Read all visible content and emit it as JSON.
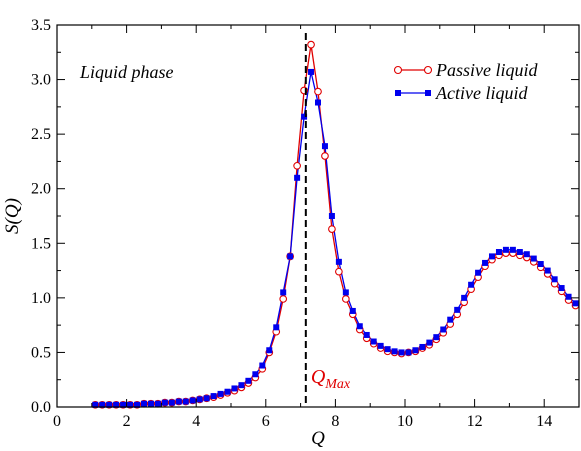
{
  "chart_data": {
    "type": "line",
    "xlabel": "Q",
    "ylabel": "S(Q)",
    "xlim": [
      0,
      15
    ],
    "ylim": [
      0,
      3.5
    ],
    "xticks": [
      "0",
      "2",
      "4",
      "6",
      "8",
      "10",
      "12",
      "14"
    ],
    "yticks": [
      "0.0",
      "0.5",
      "1.0",
      "1.5",
      "2.0",
      "2.5",
      "3.0",
      "3.5"
    ],
    "grid": false,
    "legend_position": "top-right",
    "annotation": "Liquid phase",
    "qmax_label": {
      "main": "Q",
      "sub": "Max"
    },
    "qmax_x": 7.15,
    "series": [
      {
        "name": "Passive liquid",
        "color": "#e00000",
        "marker": "open-circle",
        "x": [
          1.1,
          1.3,
          1.5,
          1.7,
          1.9,
          2.1,
          2.3,
          2.5,
          2.7,
          2.9,
          3.1,
          3.3,
          3.5,
          3.7,
          3.9,
          4.1,
          4.3,
          4.5,
          4.7,
          4.9,
          5.1,
          5.3,
          5.5,
          5.7,
          5.9,
          6.1,
          6.3,
          6.5,
          6.7,
          6.9,
          7.1,
          7.3,
          7.5,
          7.7,
          7.9,
          8.1,
          8.3,
          8.5,
          8.7,
          8.9,
          9.1,
          9.3,
          9.5,
          9.7,
          9.9,
          10.1,
          10.3,
          10.5,
          10.7,
          10.9,
          11.1,
          11.3,
          11.5,
          11.7,
          11.9,
          12.1,
          12.3,
          12.5,
          12.7,
          12.9,
          13.1,
          13.3,
          13.5,
          13.7,
          13.9,
          14.1,
          14.3,
          14.5,
          14.7,
          14.9
        ],
        "y": [
          0.02,
          0.02,
          0.02,
          0.02,
          0.02,
          0.02,
          0.02,
          0.03,
          0.03,
          0.03,
          0.04,
          0.04,
          0.05,
          0.05,
          0.06,
          0.07,
          0.08,
          0.09,
          0.11,
          0.13,
          0.15,
          0.18,
          0.22,
          0.27,
          0.35,
          0.5,
          0.69,
          0.99,
          1.38,
          2.21,
          2.9,
          3.32,
          2.89,
          2.3,
          1.63,
          1.24,
          0.99,
          0.85,
          0.71,
          0.63,
          0.58,
          0.54,
          0.51,
          0.5,
          0.49,
          0.5,
          0.51,
          0.54,
          0.57,
          0.62,
          0.68,
          0.76,
          0.85,
          0.96,
          1.08,
          1.19,
          1.29,
          1.35,
          1.39,
          1.41,
          1.41,
          1.39,
          1.37,
          1.33,
          1.28,
          1.22,
          1.13,
          1.06,
          0.98,
          0.93
        ]
      },
      {
        "name": "Active liquid",
        "color": "#0000ee",
        "marker": "filled-square",
        "x": [
          1.1,
          1.3,
          1.5,
          1.7,
          1.9,
          2.1,
          2.3,
          2.5,
          2.7,
          2.9,
          3.1,
          3.3,
          3.5,
          3.7,
          3.9,
          4.1,
          4.3,
          4.5,
          4.7,
          4.9,
          5.1,
          5.3,
          5.5,
          5.7,
          5.9,
          6.1,
          6.3,
          6.5,
          6.7,
          6.9,
          7.1,
          7.3,
          7.5,
          7.7,
          7.9,
          8.1,
          8.3,
          8.5,
          8.7,
          8.9,
          9.1,
          9.3,
          9.5,
          9.7,
          9.9,
          10.1,
          10.3,
          10.5,
          10.7,
          10.9,
          11.1,
          11.3,
          11.5,
          11.7,
          11.9,
          12.1,
          12.3,
          12.5,
          12.7,
          12.9,
          13.1,
          13.3,
          13.5,
          13.7,
          13.9,
          14.1,
          14.3,
          14.5,
          14.7,
          14.9
        ],
        "y": [
          0.02,
          0.02,
          0.02,
          0.02,
          0.02,
          0.02,
          0.02,
          0.03,
          0.03,
          0.03,
          0.04,
          0.04,
          0.05,
          0.05,
          0.06,
          0.07,
          0.08,
          0.1,
          0.12,
          0.14,
          0.17,
          0.2,
          0.24,
          0.3,
          0.38,
          0.52,
          0.73,
          1.05,
          1.38,
          2.1,
          2.66,
          3.07,
          2.79,
          2.39,
          1.75,
          1.33,
          1.05,
          0.88,
          0.74,
          0.66,
          0.6,
          0.56,
          0.53,
          0.51,
          0.5,
          0.5,
          0.52,
          0.55,
          0.59,
          0.64,
          0.71,
          0.8,
          0.89,
          1.0,
          1.12,
          1.23,
          1.32,
          1.38,
          1.42,
          1.44,
          1.44,
          1.42,
          1.4,
          1.36,
          1.31,
          1.25,
          1.17,
          1.09,
          1.01,
          0.95
        ]
      }
    ]
  }
}
